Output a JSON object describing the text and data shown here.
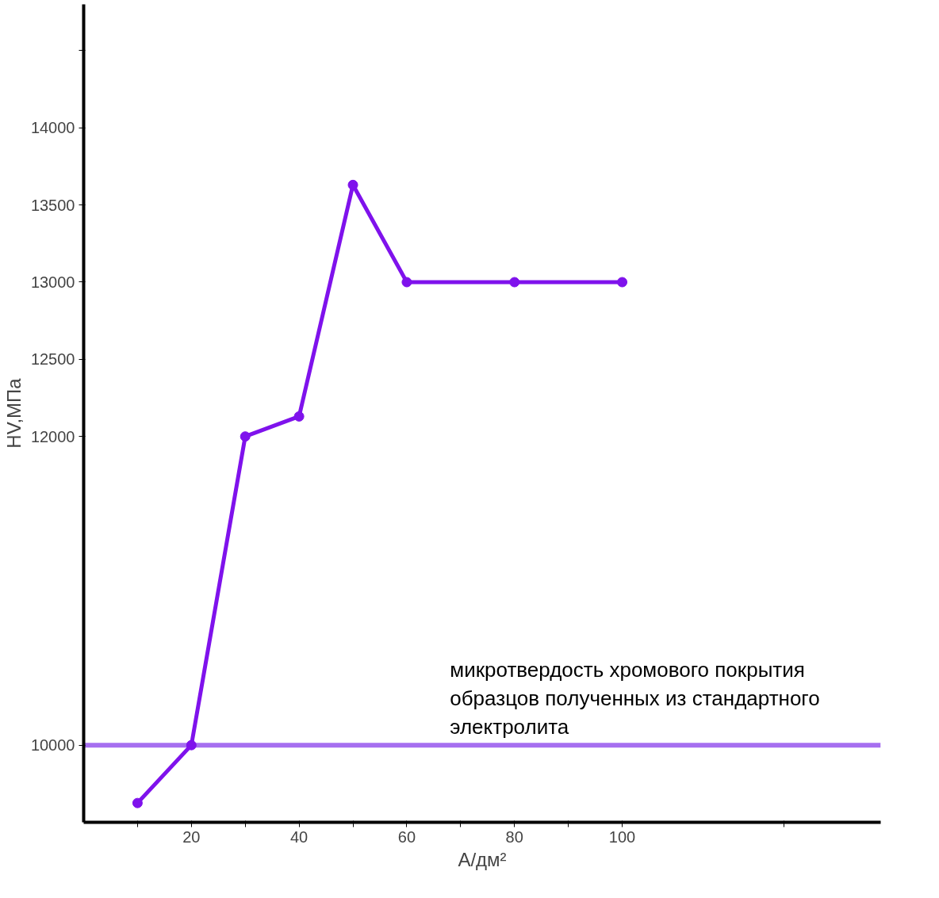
{
  "chart_data": {
    "type": "line",
    "xlabel": "А/дм²",
    "ylabel": "HV,МПа",
    "x": [
      10,
      20,
      30,
      40,
      50,
      60,
      80,
      100
    ],
    "series": [
      {
        "color": "#7f12ec",
        "values": [
          9625,
          10000,
          12000,
          12130,
          13630,
          13000,
          13000,
          13000
        ]
      }
    ],
    "xlim": [
      0,
      148
    ],
    "xticks": [
      {
        "value": 10,
        "label": null
      },
      20,
      {
        "value": 30,
        "label": null
      },
      40,
      {
        "value": 50,
        "label": null
      },
      60,
      {
        "value": 70,
        "label": null
      },
      80,
      {
        "value": 90,
        "label": null
      },
      100,
      {
        "value": 130,
        "label": null
      }
    ],
    "ylim": [
      9500,
      14800
    ],
    "yticks": [
      10000,
      12000,
      12500,
      13000,
      13500,
      14000,
      {
        "value": 14500,
        "label": null
      }
    ],
    "ref_lines": [
      {
        "axis": "y",
        "value": 10000,
        "label": "микротвердость хромового покрытия\nобразцов полученных из стандартного\nэлектролита",
        "color": "#a66ff0"
      }
    ],
    "marker": "circle",
    "grid": false
  }
}
